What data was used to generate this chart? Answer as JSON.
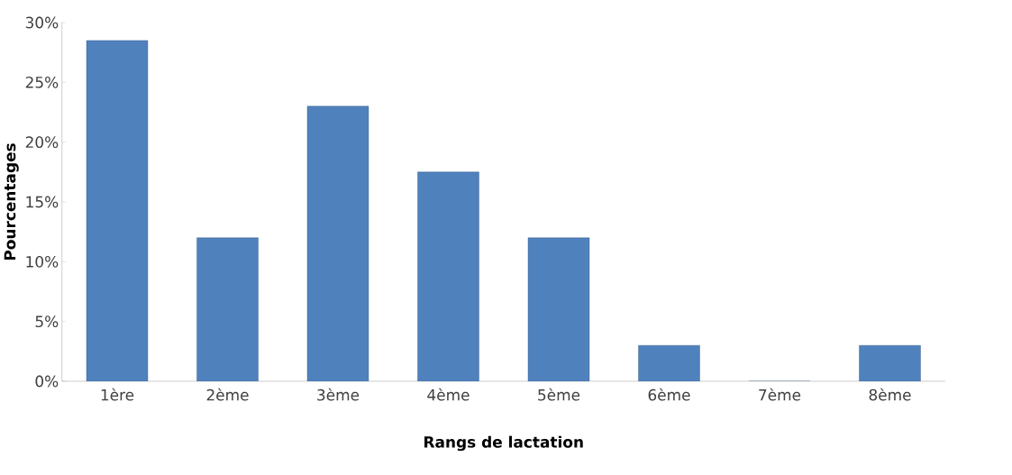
{
  "chart_data": {
    "type": "bar",
    "xlabel": "Rangs de lactation",
    "ylabel": "Pourcentages",
    "categories": [
      "1ère",
      "2ème",
      "3ème",
      "4ème",
      "5ème",
      "6ème",
      "7ème",
      "8ème"
    ],
    "values": [
      28.5,
      12,
      23,
      17.5,
      12,
      3,
      0,
      3
    ],
    "color": "#4f81bd",
    "ylim": [
      0,
      30
    ],
    "yticks": [
      {
        "value": 0,
        "label": "0%"
      },
      {
        "value": 5,
        "label": "5%"
      },
      {
        "value": 10,
        "label": "10%"
      },
      {
        "value": 15,
        "label": "15%"
      },
      {
        "value": 20,
        "label": "20%"
      },
      {
        "value": 25,
        "label": "25%"
      },
      {
        "value": 30,
        "label": "30%"
      }
    ]
  }
}
